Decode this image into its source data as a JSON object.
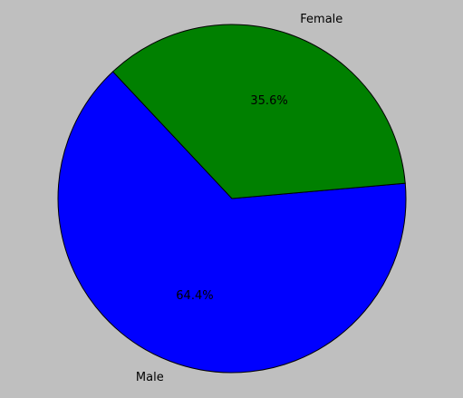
{
  "chart_data": {
    "type": "pie",
    "title": "",
    "labels": [
      "Male",
      "Female"
    ],
    "values": [
      64.4,
      35.6
    ],
    "percent_labels": [
      "64.4%",
      "35.6%"
    ],
    "colors": [
      "#0000ff",
      "#008000"
    ],
    "background": "#bfbfbf",
    "legend": "none"
  }
}
